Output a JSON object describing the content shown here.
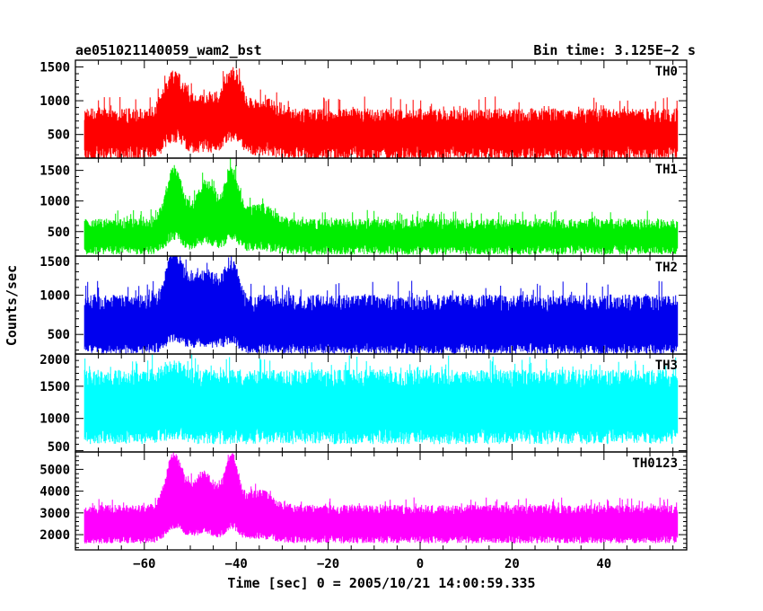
{
  "header": {
    "title": "ae051021140059_wam2_bst",
    "bin_time": "Bin time: 3.125E−2 s"
  },
  "chart_data": {
    "type": "line",
    "xlabel": "Time [sec] 0 = 2005/10/21 14:00:59.335",
    "ylabel": "Counts/sec",
    "xlim": [
      -75,
      58
    ],
    "x_ticks": [
      -60,
      -40,
      -20,
      0,
      20,
      40
    ],
    "x_tick_labels": [
      "−60",
      "−40",
      "−20",
      "0",
      "20",
      "40"
    ],
    "data_range": [
      -73,
      56
    ],
    "bin_time": 0.03125,
    "panels": [
      {
        "label": "TH0",
        "color": "#ff0000",
        "ylim": [
          150,
          1600
        ],
        "yticks": [
          500,
          1000,
          1500
        ],
        "lower": {
          "base": 220,
          "jitter": 110,
          "burst": 260
        },
        "upper": {
          "base": 780,
          "jitter": 110,
          "burst": 550
        },
        "bursts": [
          {
            "t": -53.5,
            "w": 3.0,
            "a": 1.0
          },
          {
            "t": -46.0,
            "w": 5.0,
            "a": 0.45
          },
          {
            "t": -40.5,
            "w": 2.5,
            "a": 0.95
          },
          {
            "t": -34.0,
            "w": 4.0,
            "a": 0.3
          }
        ]
      },
      {
        "label": "TH1",
        "color": "#00ee00",
        "ylim": [
          100,
          1700
        ],
        "yticks": [
          500,
          1000,
          1500
        ],
        "lower": {
          "base": 200,
          "jitter": 80,
          "burst": 230
        },
        "upper": {
          "base": 620,
          "jitter": 90,
          "burst": 880
        },
        "bursts": [
          {
            "t": -53.5,
            "w": 2.5,
            "a": 1.0
          },
          {
            "t": -46.5,
            "w": 3.0,
            "a": 0.75
          },
          {
            "t": -41.0,
            "w": 2.0,
            "a": 0.95
          },
          {
            "t": -35.0,
            "w": 4.0,
            "a": 0.3
          }
        ]
      },
      {
        "label": "TH2",
        "color": "#0000ee",
        "ylim": [
          250,
          1500
        ],
        "yticks": [
          500,
          1000,
          1500
        ],
        "lower": {
          "base": 320,
          "jitter": 70,
          "burst": 150
        },
        "upper": {
          "base": 900,
          "jitter": 110,
          "burst": 580
        },
        "bursts": [
          {
            "t": -53.5,
            "w": 2.5,
            "a": 1.0
          },
          {
            "t": -47.0,
            "w": 4.0,
            "a": 0.6
          },
          {
            "t": -41.0,
            "w": 2.0,
            "a": 0.8
          }
        ]
      },
      {
        "label": "TH3",
        "color": "#00ffff",
        "ylim": [
          480,
          2000
        ],
        "yticks": [
          500,
          1000,
          1500,
          2000
        ],
        "lower": {
          "base": 720,
          "jitter": 120,
          "burst": 60
        },
        "upper": {
          "base": 1620,
          "jitter": 140,
          "burst": 150
        },
        "bursts": [
          {
            "t": -53.5,
            "w": 3.0,
            "a": 1.0
          }
        ]
      },
      {
        "label": "TH0123",
        "color": "#ff00ff",
        "ylim": [
          1300,
          5800
        ],
        "yticks": [
          2000,
          3000,
          4000,
          5000
        ],
        "lower": {
          "base": 1780,
          "jitter": 180,
          "burst": 650
        },
        "upper": {
          "base": 3150,
          "jitter": 220,
          "burst": 2450
        },
        "bursts": [
          {
            "t": -53.5,
            "w": 2.5,
            "a": 1.0
          },
          {
            "t": -47.0,
            "w": 3.5,
            "a": 0.65
          },
          {
            "t": -41.0,
            "w": 2.0,
            "a": 0.95
          },
          {
            "t": -35.0,
            "w": 4.0,
            "a": 0.3
          }
        ]
      }
    ]
  }
}
